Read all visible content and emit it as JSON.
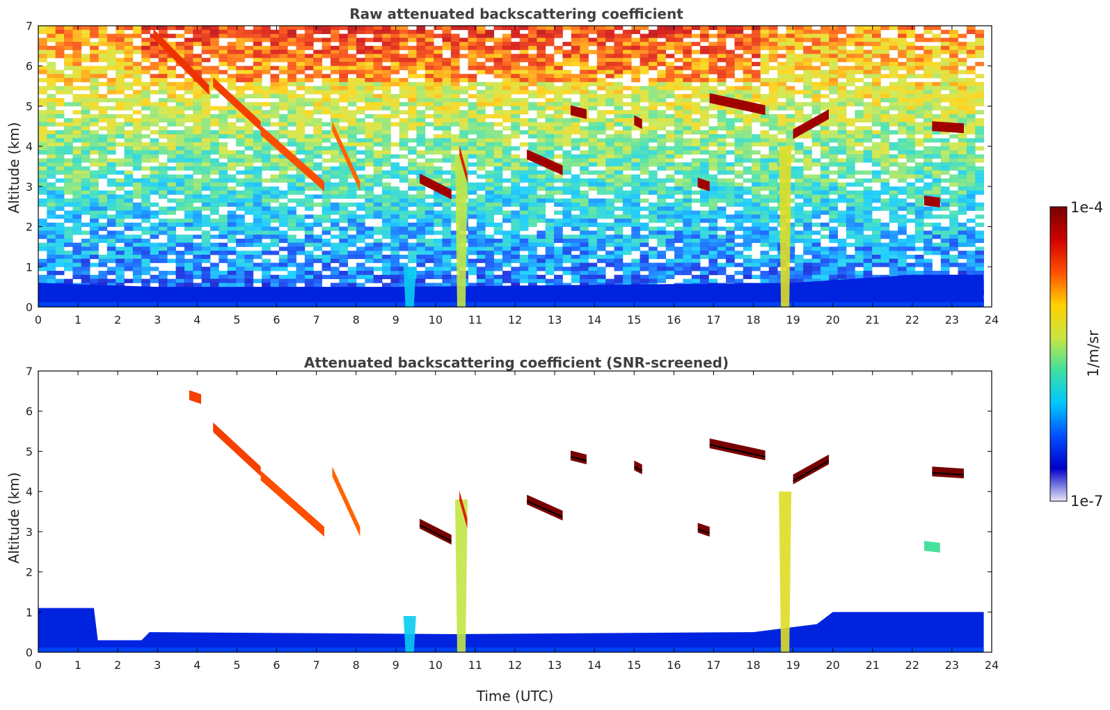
{
  "chart_data": [
    {
      "type": "heatmap",
      "title": "Raw attenuated backscattering coefficient",
      "xlabel": "",
      "ylabel": "Altitude (km)",
      "xlim": [
        0,
        24
      ],
      "ylim": [
        0,
        7
      ],
      "x_ticks": [
        "0",
        "1",
        "2",
        "3",
        "4",
        "5",
        "6",
        "7",
        "8",
        "9",
        "10",
        "11",
        "12",
        "13",
        "14",
        "15",
        "16",
        "17",
        "18",
        "19",
        "20",
        "21",
        "22",
        "23",
        "24"
      ],
      "y_ticks": [
        "0",
        "1",
        "2",
        "3",
        "4",
        "5",
        "6",
        "7"
      ],
      "data_end_hour": 23.8,
      "boundary_layer_top_km": [
        [
          0,
          0.6
        ],
        [
          3,
          0.5
        ],
        [
          9,
          0.5
        ],
        [
          19,
          0.6
        ],
        [
          22,
          0.8
        ],
        [
          23.8,
          0.8
        ]
      ],
      "clouds": [
        {
          "x": 2.9,
          "y": 6.8,
          "x2": 4.3,
          "y2": 5.4,
          "level": 0.82
        },
        {
          "x": 4.4,
          "y": 5.6,
          "x2": 5.6,
          "y2": 4.5,
          "level": 0.8
        },
        {
          "x": 5.6,
          "y": 4.4,
          "x2": 7.2,
          "y2": 3.0,
          "level": 0.78
        },
        {
          "x": 7.4,
          "y": 4.5,
          "x2": 8.1,
          "y2": 3.0,
          "level": 0.76
        },
        {
          "x": 9.6,
          "y": 3.2,
          "x2": 10.4,
          "y2": 2.8,
          "level": 0.95
        },
        {
          "x": 10.6,
          "y": 3.9,
          "x2": 10.8,
          "y2": 3.2,
          "level": 0.85
        },
        {
          "x": 12.3,
          "y": 3.8,
          "x2": 13.2,
          "y2": 3.4,
          "level": 0.95
        },
        {
          "x": 13.4,
          "y": 4.9,
          "x2": 13.8,
          "y2": 4.8,
          "level": 0.95
        },
        {
          "x": 15.0,
          "y": 4.65,
          "x2": 15.2,
          "y2": 4.55,
          "level": 0.95
        },
        {
          "x": 16.6,
          "y": 3.1,
          "x2": 16.9,
          "y2": 3.0,
          "level": 0.95
        },
        {
          "x": 16.9,
          "y": 5.2,
          "x2": 18.3,
          "y2": 4.9,
          "level": 0.95
        },
        {
          "x": 19.0,
          "y": 4.3,
          "x2": 19.9,
          "y2": 4.8,
          "level": 0.95
        },
        {
          "x": 22.5,
          "y": 4.5,
          "x2": 23.3,
          "y2": 4.45,
          "level": 0.95
        },
        {
          "x": 22.3,
          "y": 2.65,
          "x2": 22.7,
          "y2": 2.6,
          "level": 0.95
        }
      ],
      "plumes": [
        {
          "x": 9.35,
          "top_km": 1.0,
          "level": 0.35
        },
        {
          "x": 10.65,
          "top_km": 3.8,
          "level": 0.55
        },
        {
          "x": 18.8,
          "top_km": 4.0,
          "level": 0.6
        }
      ]
    },
    {
      "type": "heatmap",
      "title": "Attenuated backscattering coefficient (SNR-screened)",
      "xlabel": "Time (UTC)",
      "ylabel": "Altitude (km)",
      "xlim": [
        0,
        24
      ],
      "ylim": [
        0,
        7
      ],
      "x_ticks": [
        "0",
        "1",
        "2",
        "3",
        "4",
        "5",
        "6",
        "7",
        "8",
        "9",
        "10",
        "11",
        "12",
        "13",
        "14",
        "15",
        "16",
        "17",
        "18",
        "19",
        "20",
        "21",
        "22",
        "23",
        "24"
      ],
      "y_ticks": [
        "0",
        "1",
        "2",
        "3",
        "4",
        "5",
        "6",
        "7"
      ],
      "data_end_hour": 23.8,
      "boundary_layer_top_km": [
        [
          0,
          1.1
        ],
        [
          1.4,
          1.1
        ],
        [
          1.5,
          0.3
        ],
        [
          2.6,
          0.3
        ],
        [
          2.8,
          0.5
        ],
        [
          10.5,
          0.45
        ],
        [
          18,
          0.5
        ],
        [
          19.6,
          0.7
        ],
        [
          20,
          1.0
        ],
        [
          23.8,
          1.0
        ]
      ],
      "clouds": [
        {
          "x": 3.8,
          "y": 6.4,
          "x2": 4.1,
          "y2": 6.3,
          "level": 0.8
        },
        {
          "x": 4.4,
          "y": 5.6,
          "x2": 5.6,
          "y2": 4.5,
          "level": 0.8
        },
        {
          "x": 5.6,
          "y": 4.4,
          "x2": 7.2,
          "y2": 3.0,
          "level": 0.78
        },
        {
          "x": 7.4,
          "y": 4.5,
          "x2": 8.1,
          "y2": 3.0,
          "level": 0.76
        },
        {
          "x": 9.6,
          "y": 3.2,
          "x2": 10.4,
          "y2": 2.8,
          "level": 1.0
        },
        {
          "x": 10.6,
          "y": 3.9,
          "x2": 10.8,
          "y2": 3.2,
          "level": 0.85
        },
        {
          "x": 12.3,
          "y": 3.8,
          "x2": 13.2,
          "y2": 3.4,
          "level": 1.0
        },
        {
          "x": 13.4,
          "y": 4.9,
          "x2": 13.8,
          "y2": 4.8,
          "level": 1.0
        },
        {
          "x": 15.0,
          "y": 4.65,
          "x2": 15.2,
          "y2": 4.55,
          "level": 1.0
        },
        {
          "x": 16.6,
          "y": 3.1,
          "x2": 16.9,
          "y2": 3.0,
          "level": 1.0
        },
        {
          "x": 16.9,
          "y": 5.2,
          "x2": 18.3,
          "y2": 4.9,
          "level": 1.0
        },
        {
          "x": 19.0,
          "y": 4.3,
          "x2": 19.9,
          "y2": 4.8,
          "level": 1.0
        },
        {
          "x": 22.5,
          "y": 4.5,
          "x2": 23.3,
          "y2": 4.45,
          "level": 1.0
        },
        {
          "x": 22.3,
          "y": 2.65,
          "x2": 22.7,
          "y2": 2.6,
          "level": 0.45
        }
      ],
      "plumes": [
        {
          "x": 9.35,
          "top_km": 0.9,
          "level": 0.35
        },
        {
          "x": 10.65,
          "top_km": 3.8,
          "level": 0.55
        },
        {
          "x": 18.8,
          "top_km": 4.0,
          "level": 0.6
        }
      ]
    }
  ],
  "colorbar": {
    "label": "1/m/sr",
    "max_label": "1e-4",
    "min_label": "1e-7",
    "colormap": [
      "#e8e8f8",
      "#0000c8",
      "#0050ff",
      "#00c8ff",
      "#40e0a0",
      "#c8e640",
      "#ffd000",
      "#ff5000",
      "#d00000",
      "#780000"
    ]
  }
}
